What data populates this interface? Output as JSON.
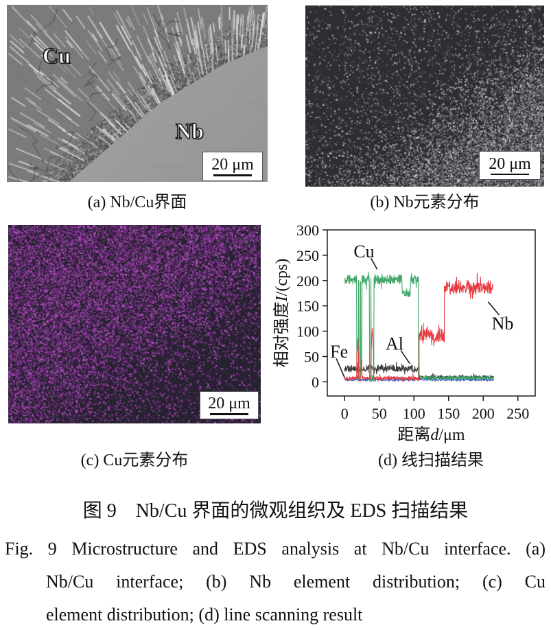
{
  "figure": {
    "panel_a": {
      "caption": "(a) Nb/Cu界面",
      "region_labels": {
        "cu": "Cu",
        "nb": "Nb"
      },
      "scale_bar": "20 μm"
    },
    "panel_b": {
      "caption": "(b) Nb元素分布",
      "scale_bar": "20 μm"
    },
    "panel_c": {
      "caption": "(c) Cu元素分布",
      "scale_bar": "20 μm"
    },
    "panel_d": {
      "caption": "(d) 线扫描结果"
    },
    "caption_zh": "图 9　Nb/Cu 界面的微观组织及 EDS 扫描结果",
    "caption_en": {
      "line1": "Fig. 9  Microstructure and EDS analysis at Nb/Cu interface. (a)",
      "line2": "Nb/Cu interface; (b) Nb element distribution; (c) Cu",
      "line3": "element distribution; (d) line scanning result"
    },
    "colors": {
      "cu_map_magenta": "#b44cc4",
      "nb_map_gray": "#9aa0a6",
      "sem_cu_gray": "#7b7b7b",
      "sem_nb_gray": "#9c9c9c"
    }
  },
  "chart_data": {
    "type": "line",
    "title": "",
    "xlabel": "距离d/μm",
    "ylabel": "相对强度I/(cps)",
    "xlim": [
      -25,
      275
    ],
    "ylim": [
      -28,
      300
    ],
    "xticks": [
      0,
      50,
      100,
      150,
      200,
      250
    ],
    "yticks": [
      0,
      50,
      100,
      150,
      200,
      250,
      300
    ],
    "grid": false,
    "legend": "inline-annotations",
    "series": [
      {
        "name": "Cu",
        "color": "#3fa768",
        "seed": 11,
        "segments": [
          {
            "x0": 0,
            "x1": 106.5,
            "mean": 202,
            "amp": 13
          },
          {
            "x0": 106.5,
            "x1": 215,
            "mean": 8,
            "amp": 4
          }
        ],
        "dips": [
          {
            "x": 18.5,
            "w": 1.2,
            "to": 6
          },
          {
            "x": 21.5,
            "w": 1.0,
            "to": 6
          },
          {
            "x": 24.2,
            "w": 0.8,
            "to": 30
          },
          {
            "x": 36.8,
            "w": 1.1,
            "to": 6
          },
          {
            "x": 40.2,
            "w": 1.9,
            "to": 6
          },
          {
            "x": 89,
            "w": 6,
            "to": 176
          }
        ]
      },
      {
        "name": "Nb",
        "color": "#e63a40",
        "seed": 22,
        "segments": [
          {
            "x0": 0,
            "x1": 107.5,
            "mean": 7,
            "amp": 5
          },
          {
            "x0": 107.5,
            "x1": 144,
            "mean": 91,
            "amp": 17
          },
          {
            "x0": 144,
            "x1": 214,
            "mean": 186,
            "amp": 15
          }
        ],
        "spikes": [
          {
            "x": 19,
            "w": 1.4,
            "to": 86
          },
          {
            "x": 24.2,
            "w": 0.8,
            "to": 40
          },
          {
            "x": 40,
            "w": 1.8,
            "to": 100
          }
        ]
      },
      {
        "name": "Al",
        "color": "#3d3d40",
        "seed": 33,
        "segments": [
          {
            "x0": 0,
            "x1": 106.5,
            "mean": 26,
            "amp": 8
          },
          {
            "x0": 106.5,
            "x1": 215,
            "mean": 9,
            "amp": 4
          }
        ]
      },
      {
        "name": "Fe",
        "color": "#4a67c8",
        "seed": 44,
        "segments": [
          {
            "x0": 0,
            "x1": 215,
            "mean": 4,
            "amp": 3
          }
        ]
      }
    ],
    "annotations": [
      {
        "text": "Cu",
        "x": 28,
        "y": 258,
        "leader": [
          [
            38,
            244
          ],
          [
            47,
            222
          ]
        ]
      },
      {
        "text": "Nb",
        "x": 228,
        "y": 116,
        "leader": [
          [
            207,
            158
          ],
          [
            223,
            132
          ]
        ]
      },
      {
        "text": "Al",
        "x": 72,
        "y": 76,
        "leader": [
          [
            81,
            62
          ],
          [
            94,
            36
          ]
        ]
      },
      {
        "text": "Fe",
        "x": -8,
        "y": 60,
        "leader": [
          [
            -12,
            46
          ],
          [
            0,
            8
          ]
        ]
      }
    ]
  }
}
